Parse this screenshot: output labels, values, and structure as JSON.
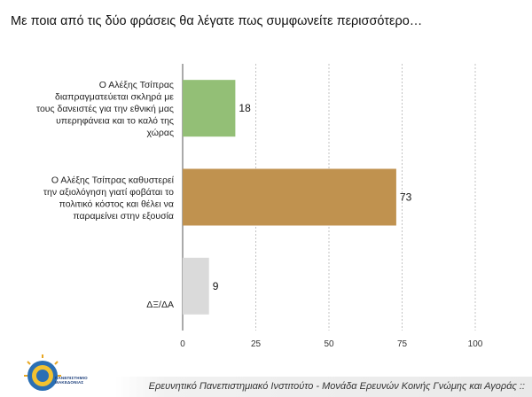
{
  "title": "Με ποια από τις δύο φράσεις θα λέγατε πως συμφωνείτε περισσότερο…",
  "footer": "Ερευνητικό Πανεπιστημιακό Ινστιτούτο - Μονάδα Ερευνών Κοινής Γνώμης και Αγοράς ::",
  "logo": {
    "line1": "ΠΑΝΕΠΙΣΤΗΜΙΟ",
    "line2": "ΜΑΚΕΔΟΝΙΑΣ"
  },
  "chart_data": {
    "type": "bar",
    "orientation": "horizontal",
    "categories": [
      "Ο Αλέξης Τσίπρας διαπραγματεύεται σκληρά με τους δανειστές για την εθνική μας υπερηφάνεια και το καλό της χώρας",
      "Ο Αλέξης Τσίπρας καθυστερεί την αξιολόγηση γιατί φοβάται το πολιτικό κόστος και θέλει να παραμείνει στην εξουσία",
      "ΔΞ/ΔΑ"
    ],
    "category_lines": [
      [
        "Ο Αλέξης Τσίπρας",
        "διαπραγματεύεται σκληρά με",
        "τους δανειστές για την εθνική μας",
        "υπερηφάνεια και το καλό της",
        "χώρας"
      ],
      [
        "Ο Αλέξης Τσίπρας καθυστερεί",
        "την αξιολόγηση γιατί φοβάται το",
        "πολιτικό κόστος και θέλει να",
        "παραμείνει στην εξουσία"
      ],
      [
        "ΔΞ/ΔΑ"
      ]
    ],
    "values": [
      18,
      73,
      9
    ],
    "colors": [
      "#93bf76",
      "#c0924f",
      "#dadada"
    ],
    "xlim": [
      0,
      100
    ],
    "xticks": [
      "0",
      "25",
      "50",
      "75",
      "100"
    ],
    "grid": "vertical-dashed"
  }
}
